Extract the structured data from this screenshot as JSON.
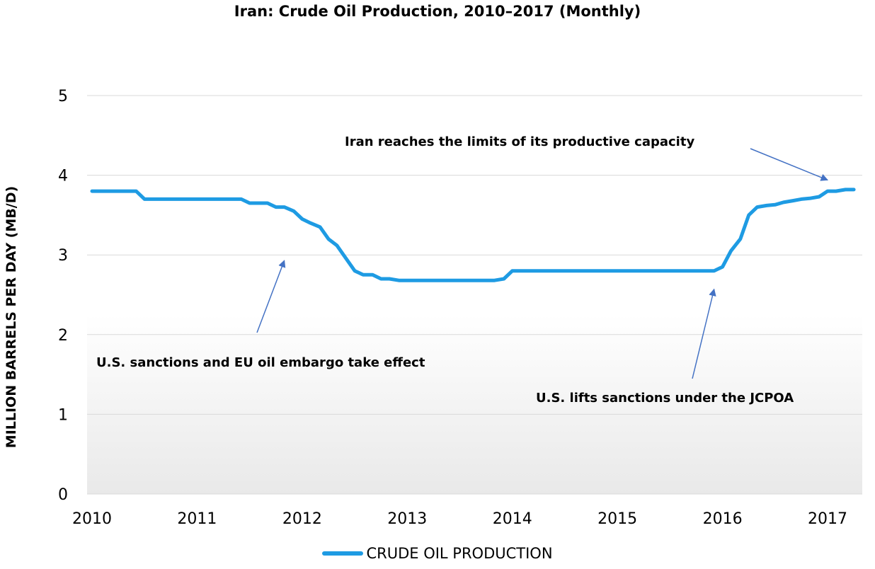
{
  "chart_data": {
    "type": "line",
    "title": "Iran: Crude Oil Production, 2010–2017 (Monthly)",
    "xlabel": "",
    "ylabel": "MILLION BARRELS PER DAY (MB/D)",
    "ylim": [
      0,
      5
    ],
    "yticks": [
      "0",
      "1",
      "2",
      "3",
      "4",
      "5"
    ],
    "xticks": [
      "2010",
      "2011",
      "2012",
      "2013",
      "2014",
      "2015",
      "2016",
      "2017"
    ],
    "xlim": [
      2010,
      2017.33
    ],
    "grid": true,
    "legend_position": "bottom",
    "color": "#1e9be3",
    "series": [
      {
        "name": "CRUDE OIL PRODUCTION",
        "x": [
          2010.0,
          2010.42,
          2010.5,
          2011.0,
          2011.42,
          2011.5,
          2011.67,
          2011.75,
          2011.83,
          2011.92,
          2012.0,
          2012.08,
          2012.17,
          2012.25,
          2012.33,
          2012.42,
          2012.5,
          2012.58,
          2012.67,
          2012.75,
          2012.83,
          2012.92,
          2013.0,
          2013.5,
          2013.83,
          2013.92,
          2014.0,
          2015.0,
          2015.92,
          2016.0,
          2016.08,
          2016.17,
          2016.25,
          2016.33,
          2016.42,
          2016.5,
          2016.58,
          2016.67,
          2016.75,
          2016.83,
          2016.92,
          2017.0,
          2017.08,
          2017.17,
          2017.25
        ],
        "values": [
          3.8,
          3.8,
          3.7,
          3.7,
          3.7,
          3.65,
          3.65,
          3.6,
          3.6,
          3.55,
          3.45,
          3.4,
          3.35,
          3.2,
          3.12,
          2.95,
          2.8,
          2.75,
          2.75,
          2.7,
          2.7,
          2.68,
          2.68,
          2.68,
          2.68,
          2.7,
          2.8,
          2.8,
          2.8,
          2.85,
          3.05,
          3.2,
          3.5,
          3.6,
          3.62,
          3.63,
          3.66,
          3.68,
          3.7,
          3.71,
          3.73,
          3.8,
          3.8,
          3.82,
          3.82
        ]
      }
    ],
    "annotations": [
      {
        "text": "Iran reaches the limits of its productive capacity",
        "arrow_to": [
          2017.0,
          3.94
        ]
      },
      {
        "text": "U.S. sanctions and EU oil embargo take effect",
        "arrow_to": [
          2011.83,
          2.93
        ]
      },
      {
        "text": "U.S. lifts sanctions under the JCPOA",
        "arrow_to": [
          2015.92,
          2.57
        ]
      }
    ]
  }
}
